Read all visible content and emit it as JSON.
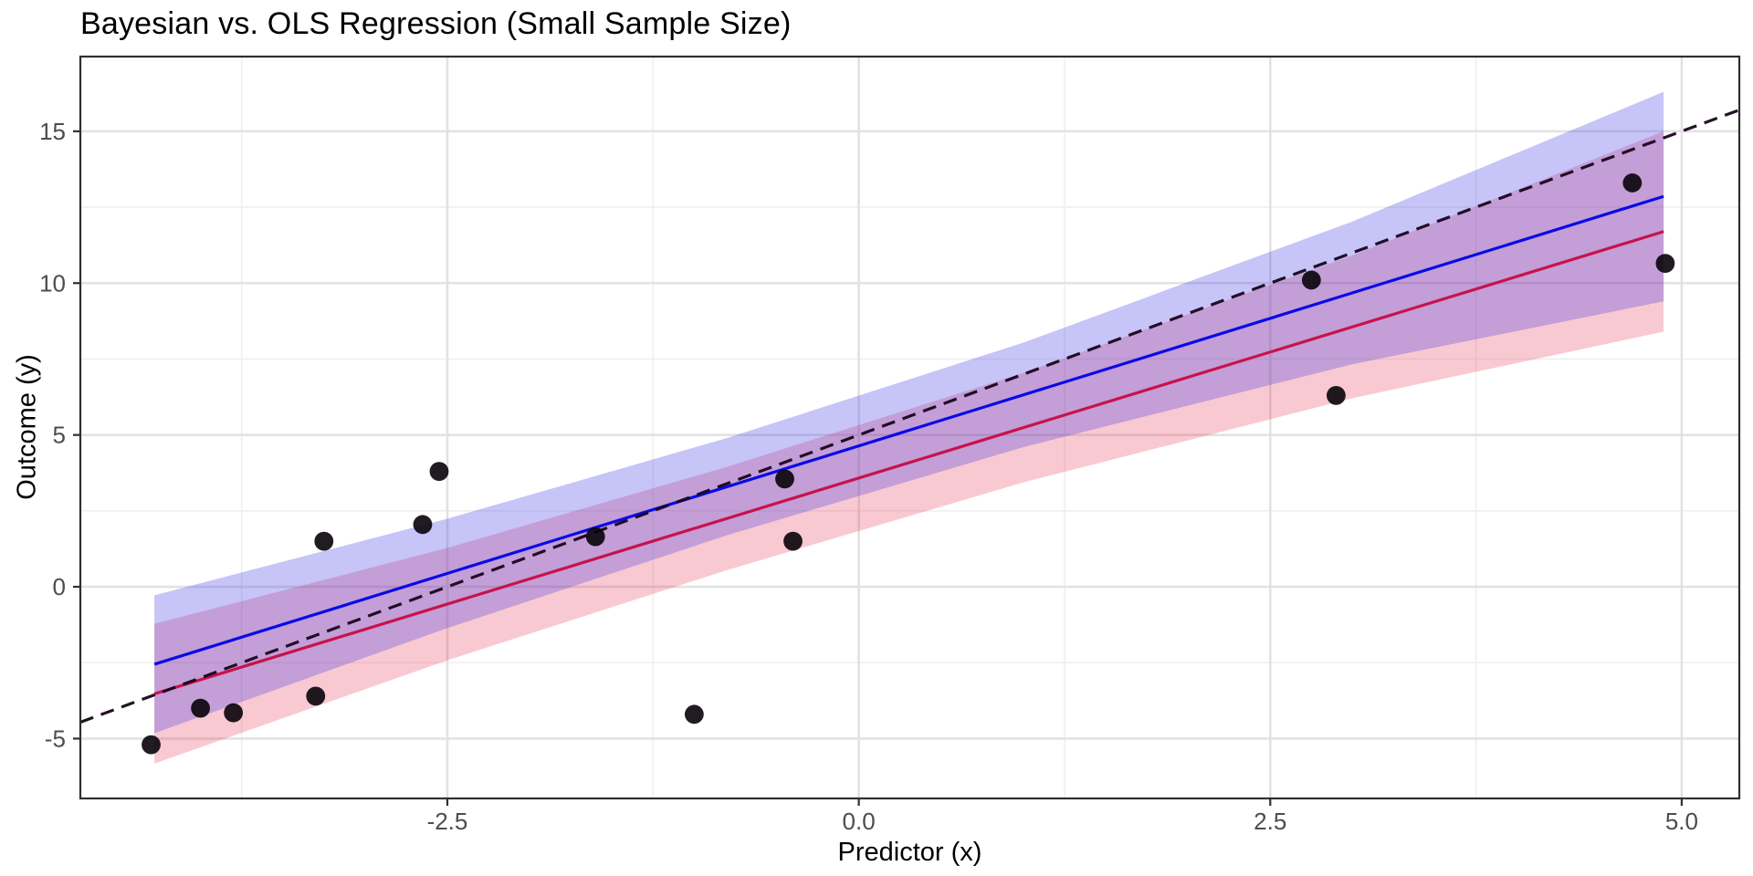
{
  "chart_data": {
    "type": "scatter",
    "title": "Bayesian vs. OLS Regression (Small Sample Size)",
    "xlabel": "Predictor (x)",
    "ylabel": "Outcome (y)",
    "xlim": [
      -4.73,
      5.35
    ],
    "ylim": [
      -6.97,
      17.46
    ],
    "grid": true,
    "legend": "none",
    "x_ticks": [
      {
        "value": -2.5,
        "label": "-2.5"
      },
      {
        "value": 0.0,
        "label": "0.0"
      },
      {
        "value": 2.5,
        "label": "2.5"
      },
      {
        "value": 5.0,
        "label": "5.0"
      }
    ],
    "y_ticks": [
      {
        "value": -5,
        "label": "-5"
      },
      {
        "value": 0,
        "label": "0"
      },
      {
        "value": 5,
        "label": "5"
      },
      {
        "value": 10,
        "label": "10"
      },
      {
        "value": 15,
        "label": "15"
      }
    ],
    "points": [
      [
        -4.3,
        -5.2
      ],
      [
        -4.0,
        -4.0
      ],
      [
        -3.8,
        -4.15
      ],
      [
        -3.3,
        -3.6
      ],
      [
        -3.25,
        1.5
      ],
      [
        -2.65,
        2.05
      ],
      [
        -2.55,
        3.8
      ],
      [
        -1.6,
        1.65
      ],
      [
        -1.0,
        -4.2
      ],
      [
        -0.45,
        3.55
      ],
      [
        -0.4,
        1.5
      ],
      [
        2.75,
        10.1
      ],
      [
        2.9,
        6.3
      ],
      [
        4.7,
        13.3
      ],
      [
        4.9,
        10.65
      ]
    ],
    "ribbons": [
      {
        "name": "ols-confidence-band",
        "color": "rgba(230,40,75,0.25)",
        "samples": [
          [
            -4.28,
            -5.82,
            -1.22
          ],
          [
            -2.5,
            -2.42,
            1.28
          ],
          [
            -0.8,
            0.55,
            3.95
          ],
          [
            1.0,
            3.44,
            7.04
          ],
          [
            3.0,
            6.21,
            10.91
          ],
          [
            4.89,
            8.4,
            15.0
          ]
        ]
      },
      {
        "name": "bayesian-credible-band",
        "color": "rgba(70,60,230,0.30)",
        "samples": [
          [
            -4.28,
            -4.82,
            -0.28
          ],
          [
            -2.5,
            -1.36,
            2.24
          ],
          [
            -0.8,
            1.7,
            4.9
          ],
          [
            1.0,
            4.6,
            8.04
          ],
          [
            3.0,
            7.33,
            12.03
          ],
          [
            4.89,
            9.4,
            16.3
          ]
        ]
      }
    ],
    "lines": [
      {
        "name": "bayesian-regression-line",
        "slope": 1.68,
        "intercept": 4.64,
        "x_start": -4.28,
        "x_end": 4.89,
        "style": "solid",
        "color": "#0a0ae6",
        "width": 3.2
      },
      {
        "name": "ols-regression-line",
        "slope": 1.66,
        "intercept": 3.58,
        "x_start": -4.28,
        "x_end": 4.89,
        "style": "solid",
        "color": "#c8124a",
        "width": 3.2
      },
      {
        "name": "true-relationship-dashed-line",
        "slope": 2.0,
        "intercept": 5.0,
        "x_start": -4.73,
        "x_end": 5.35,
        "style": "dashed",
        "color": "#19041c",
        "width": 3.2
      }
    ],
    "colors": {
      "background": "#ffffff",
      "panel_background": "#ffffff",
      "grid_major": "#e2e2e2",
      "grid_minor": "#efefef",
      "panel_border": "#2f2f2f",
      "tick_mark": "#2f2f2f",
      "tick_label": "#4d4d4d",
      "point_fill": "#08030a",
      "point_opacity": 0.9
    }
  }
}
